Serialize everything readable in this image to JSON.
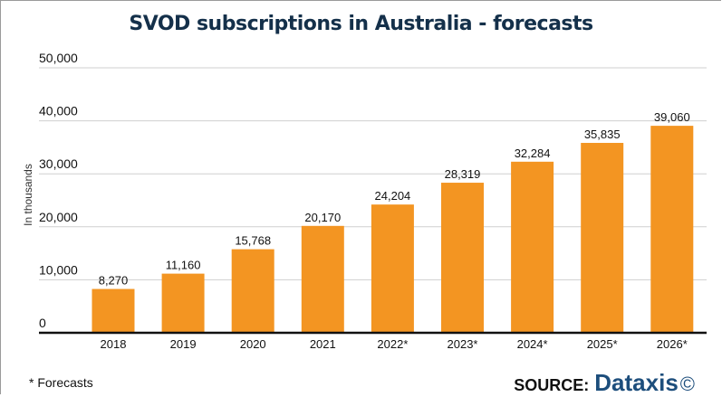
{
  "chart_data": {
    "type": "bar",
    "title": "SVOD subscriptions in Australia  - forecasts",
    "xlabel": "",
    "ylabel": "In thousands",
    "categories": [
      "2018",
      "2019",
      "2020",
      "2021",
      "2022*",
      "2023*",
      "2024*",
      "2025*",
      "2026*"
    ],
    "values": [
      8270,
      11160,
      15768,
      20170,
      24204,
      28319,
      32284,
      35835,
      39060
    ],
    "value_labels": [
      "8,270",
      "11,160",
      "15,768",
      "20,170",
      "24,204",
      "28,319",
      "32,284",
      "35,835",
      "39,060"
    ],
    "ylim": [
      0,
      50000
    ],
    "yticks": [
      0,
      10000,
      20000,
      30000,
      40000,
      50000
    ],
    "ytick_labels": [
      "0",
      "10,000",
      "20,000",
      "30,000",
      "40,000",
      "50,000"
    ],
    "grid": true,
    "bar_color": "#f39522",
    "legend": null
  },
  "footnote": "* Forecasts",
  "source": {
    "label": "SOURCE:",
    "brand": "Dataxis",
    "copyright": "©"
  }
}
